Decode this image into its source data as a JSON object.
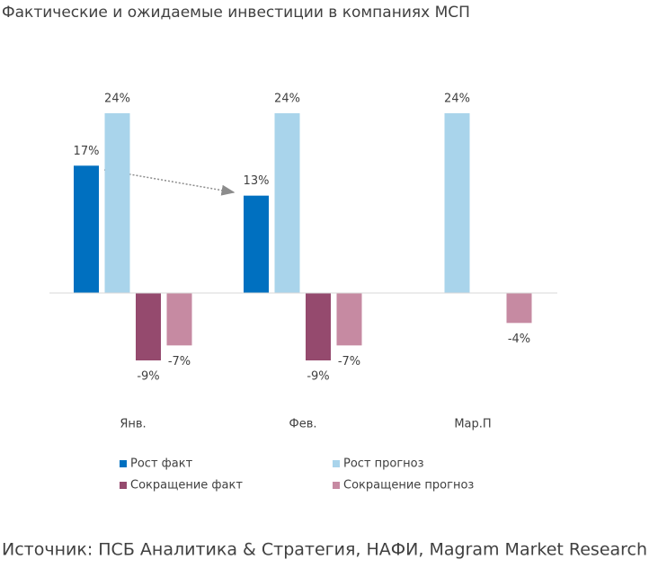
{
  "chart_data": {
    "type": "bar",
    "title": "Фактические и ожидаемые инвестиции в компаниях МСП",
    "categories": [
      "Янв.",
      "Фев.",
      "Мар.П"
    ],
    "series": [
      {
        "name": "Рост факт",
        "color": "#0070c0",
        "values": [
          17,
          13,
          null
        ],
        "value_labels": [
          "17%",
          "13%",
          null
        ]
      },
      {
        "name": "Рост прогноз",
        "color": "#a9d4eb",
        "values": [
          24,
          24,
          24
        ],
        "value_labels": [
          "24%",
          "24%",
          "24%"
        ]
      },
      {
        "name": "Сокращение факт",
        "color": "#954a6e",
        "values": [
          -9,
          -9,
          null
        ],
        "value_labels": [
          "-9%",
          "-9%",
          null
        ]
      },
      {
        "name": "Сокращение прогноз",
        "color": "#c68aa2",
        "values": [
          -7,
          -7,
          -4
        ],
        "value_labels": [
          "-7%",
          "-7%",
          "-4%"
        ]
      }
    ],
    "source": "Источник: ПСБ Аналитика & Стратегия, НАФИ, Magram Market Research"
  }
}
